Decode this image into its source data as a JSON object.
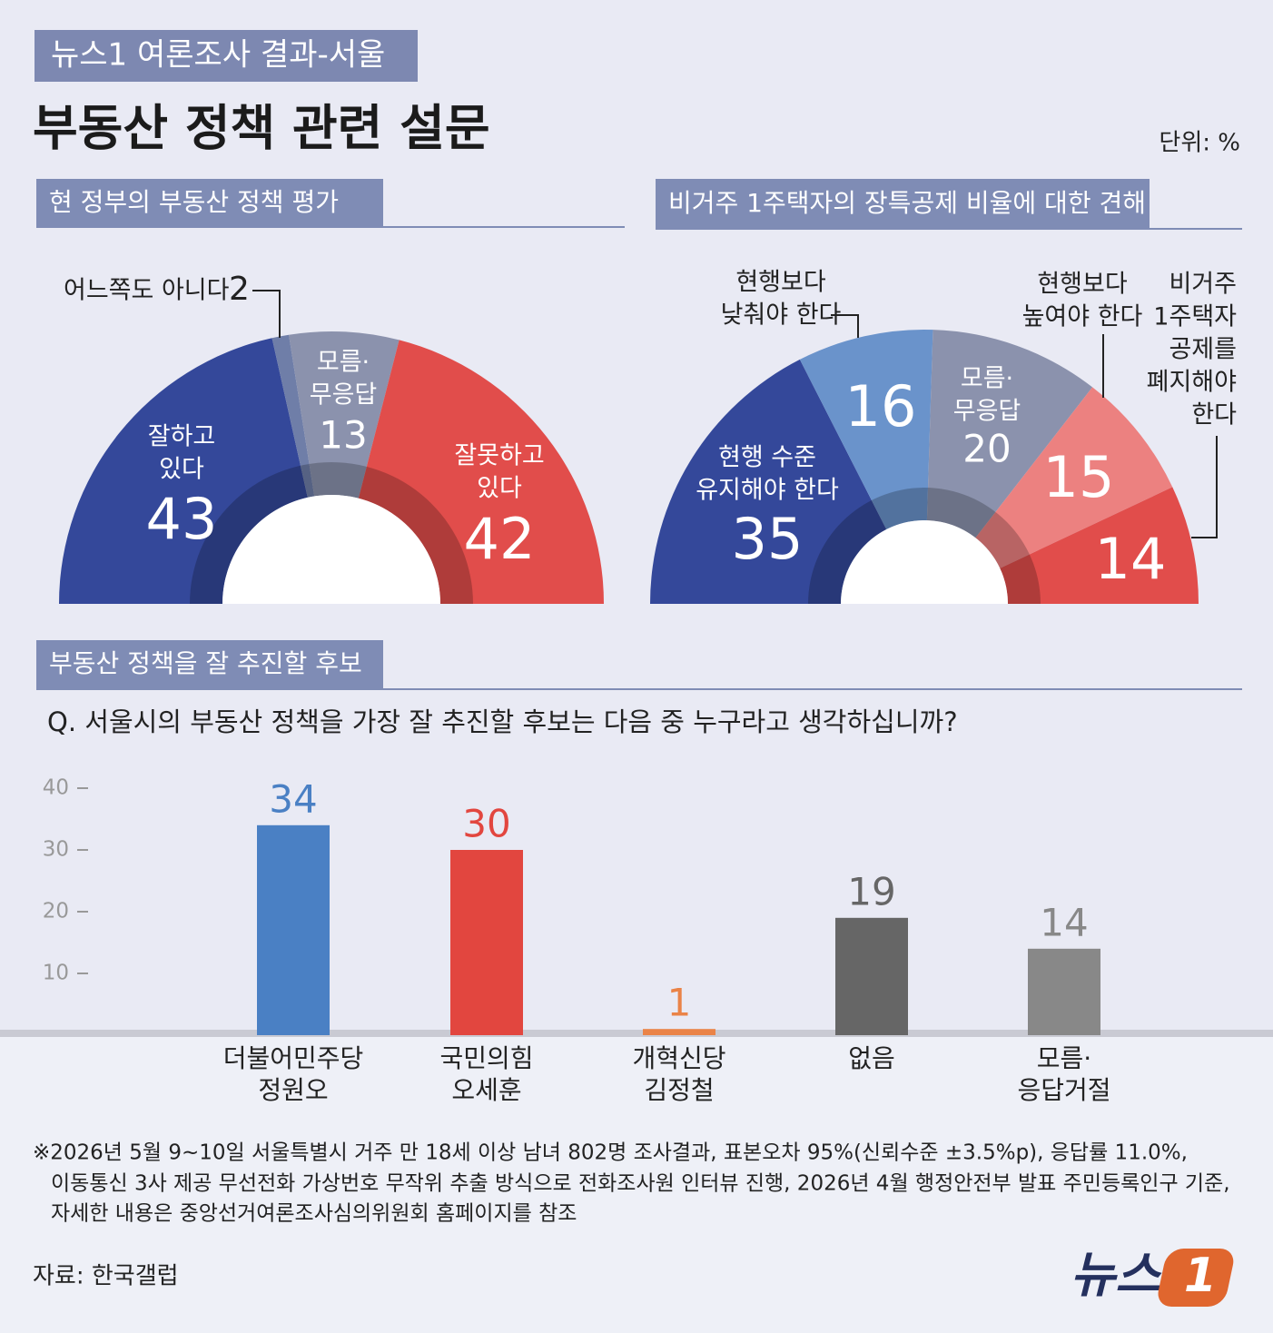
{
  "header": {
    "tag": "뉴스1 여론조사 결과-서울",
    "title": "부동산 정책 관련 설문",
    "unit": "단위: %"
  },
  "chart_data": [
    {
      "type": "semi-donut",
      "title": "현 정부의 부동산 정책 평가",
      "categories": [
        [
          "잘하고",
          "있다"
        ],
        [
          "어느쪽도 아니다"
        ],
        [
          "모름·",
          "무응답"
        ],
        [
          "잘못하고",
          "있다"
        ]
      ],
      "values": [
        43,
        2,
        13,
        42
      ],
      "colors": [
        "#34489a",
        "#6f7ea8",
        "#8b92ad",
        "#e14d4b"
      ]
    },
    {
      "type": "semi-donut",
      "title": "비거주 1주택자의 장특공제 비율에 대한 견해",
      "categories": [
        [
          "현행 수준",
          "유지해야 한다"
        ],
        [
          "현행보다",
          "낮춰야 한다"
        ],
        [
          "모름·",
          "무응답"
        ],
        [
          "현행보다",
          "높여야 한다"
        ],
        [
          "비거주",
          "1주택자",
          "공제를",
          "폐지해야",
          "한다"
        ]
      ],
      "values": [
        35,
        16,
        20,
        15,
        14
      ],
      "colors": [
        "#34489a",
        "#6a93cb",
        "#8b92ad",
        "#ec8180",
        "#e14d4b"
      ]
    },
    {
      "type": "bar",
      "title": "부동산 정책을 잘 추진할 후보",
      "subtitle": "Q. 서울시의 부동산 정책을 가장 잘 추진할 후보는 다음 중 누구라고 생각하십니까?",
      "categories": [
        [
          "더불어민주당",
          "정원오"
        ],
        [
          "국민의힘",
          "오세훈"
        ],
        [
          "개혁신당",
          "김정철"
        ],
        [
          "없음"
        ],
        [
          "모름·",
          "응답거절"
        ]
      ],
      "values": [
        34,
        30,
        1,
        19,
        14
      ],
      "colors": [
        "#4a80c4",
        "#e2463f",
        "#ea8347",
        "#666666",
        "#888888"
      ],
      "ylim": [
        0,
        40
      ],
      "yticks": [
        10,
        20,
        30,
        40
      ]
    }
  ],
  "notes": [
    "※2026년 5월 9~10일 서울특별시 거주 만 18세 이상 남녀 802명 조사결과, 표본오차 95%(신뢰수준 ±3.5%p), 응답률 11.0%,",
    "이동통신 3사 제공 무선전화 가상번호 무작위 추출 방식으로 전화조사원 인터뷰 진행, 2026년 4월 행정안전부 발표 주민등록인구 기준,",
    "자세한 내용은 중앙선거여론조사심의위원회 홈페이지를 참조"
  ],
  "source": "자료: 한국갤럽",
  "logo": [
    "뉴스",
    "1"
  ]
}
